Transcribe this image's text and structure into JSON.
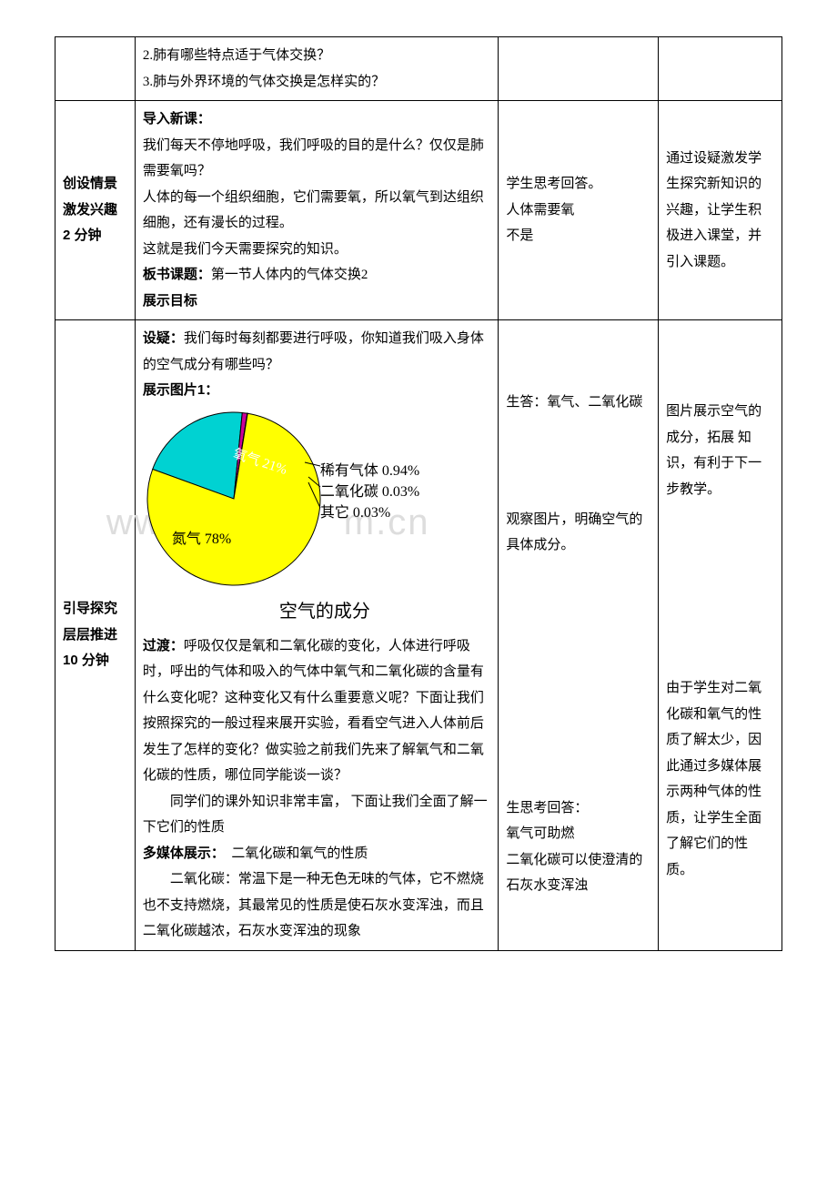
{
  "row1": {
    "left": "",
    "mid": {
      "q2": "2.肺有哪些特点适于气体交换？",
      "q3": "3.肺与外界环境的气体交换是怎样实的？"
    },
    "col3": "",
    "col4": ""
  },
  "row2": {
    "left": {
      "l1": "创设情景",
      "l2": "激发兴趣",
      "l3": "2 分钟"
    },
    "mid": {
      "h1": "导入新课：",
      "p1": "我们每天不停地呼吸，我们呼吸的目的是什么？仅仅是肺需要氧吗？",
      "p2": "人体的每一个组织细胞，它们需要氧，所以氧气到达组织细胞，还有漫长的过程。",
      "p3": "这就是我们今天需要探究的知识。",
      "h2a": "板书课题：",
      "h2b": "第一节人体内的气体交换2",
      "h3": "展示目标"
    },
    "col3": {
      "a1": "学生思考回答。",
      "a2": "人体需要氧",
      "a3": "不是"
    },
    "col4": "通过设疑激发学生探究新知识的兴趣，让学生积极进入课堂，并引入课题。"
  },
  "row3": {
    "left": {
      "l1": "引导探究",
      "l2": "层层推进",
      "l3": "10 分钟"
    },
    "mid": {
      "h1a": "设疑：",
      "h1b": "我们每时每刻都要进行呼吸，你知道我们吸入身体的空气成分有哪些吗？",
      "h2": "展示图片1：",
      "pie": {
        "title": "空气的成分",
        "slices": [
          {
            "label": "氮气 78%",
            "value": 78,
            "color": "#ffff00"
          },
          {
            "label": "氧气 21%",
            "value": 21,
            "color": "#00d2d2"
          },
          {
            "label": "稀有气体 0.94%",
            "value": 0.94,
            "color": "#cc0099"
          },
          {
            "label": "二氧化碳 0.03%",
            "value": 0.03,
            "color": "#00aa00"
          },
          {
            "label": "其它 0.03%",
            "value": 0.03,
            "color": "#ff8800"
          }
        ],
        "stroke": "#000000",
        "bg": "#ffffff",
        "title_fontsize": 20,
        "label_fontsize": 16
      },
      "trans_a": "过渡：",
      "trans_b": "呼吸仅仅是氧和二氧化碳的变化，人体进行呼吸时，呼出的气体和吸入的气体中氧气和二氧化碳的含量有什么变化呢？这种变化又有什么重要意义呢？下面让我们按照探究的一般过程来展开实验，看看空气进入人体前后发生了怎样的变化？做实验之前我们先来了解氧气和二氧化碳的性质，哪位同学能谈一谈？",
      "p4": "同学们的课外知识非常丰富， 下面让我们全面了解一下它们的性质",
      "mm_a": "多媒体展示：",
      "mm_b": "　二氧化碳和氧气的性质",
      "p5": "二氧化碳：常温下是一种无色无味的气体，它不燃烧也不支持燃烧，其最常见的性质是使石灰水变浑浊，而且二氧化碳越浓，石灰水变浑浊的现象"
    },
    "col3": {
      "a1": "生答：氧气、二氧化碳",
      "a2": "观察图片，明确空气的具体成分。",
      "a3": "生思考回答：",
      "a4": "氧气可助燃",
      "a5": "二氧化碳可以使澄清的石灰水变浑浊"
    },
    "col4": {
      "p1": "图片展示空气的成分，拓展 知识，有利于下一步教学。",
      "p2": "由于学生对二氧化碳和氧气的性质了解太少，因此通过多媒体展示两种气体的性质，让学生全面了解它们的性质。"
    }
  }
}
